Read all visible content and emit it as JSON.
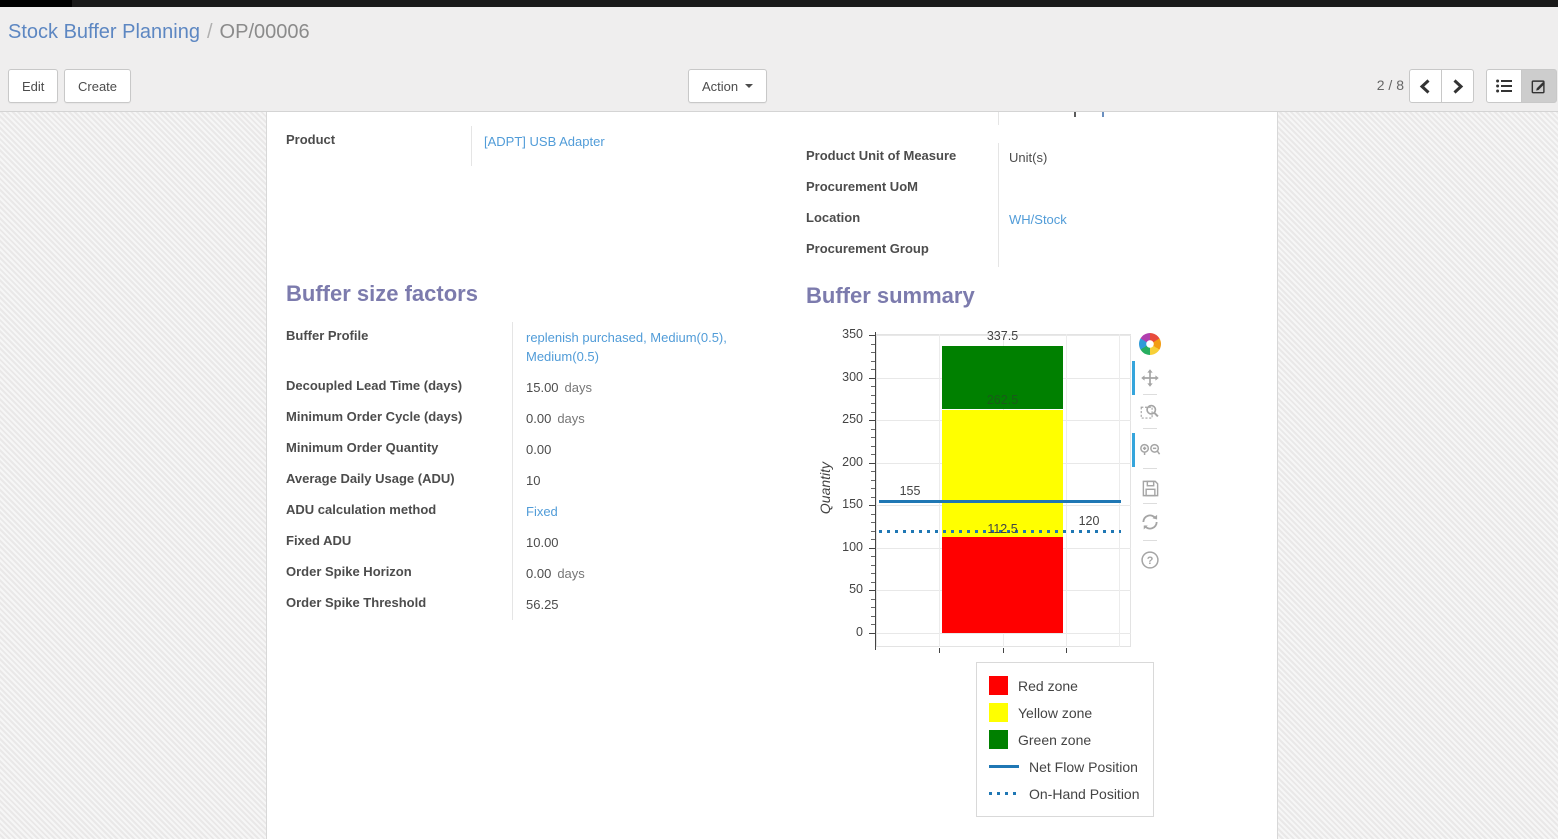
{
  "breadcrumb": {
    "parent": "Stock Buffer Planning",
    "separator": "/",
    "current": "OP/00006"
  },
  "control_panel": {
    "edit_label": "Edit",
    "create_label": "Create",
    "action_label": "Action",
    "pager_value": "2 / 8"
  },
  "form": {
    "general_left": [
      {
        "label": "Product",
        "value": "[ADPT] USB Adapter"
      }
    ],
    "general_right": [
      {
        "label": "Product Unit of Measure",
        "value": "Unit(s)"
      },
      {
        "label": "Procurement UoM",
        "value": ""
      },
      {
        "label": "Location",
        "value": "WH/Stock"
      },
      {
        "label": "Procurement Group",
        "value": ""
      }
    ],
    "buffer_size_factors": {
      "title": "Buffer size factors",
      "rows": [
        {
          "label": "Buffer Profile",
          "value": "replenish purchased, Medium(0.5), Medium(0.5)"
        },
        {
          "label": "Decoupled Lead Time (days)",
          "value": "15.00",
          "suffix": "days"
        },
        {
          "label": "Minimum Order Cycle (days)",
          "value": "0.00",
          "suffix": "days"
        },
        {
          "label": "Minimum Order Quantity",
          "value": "0.00"
        },
        {
          "label": "Average Daily Usage (ADU)",
          "value": "10"
        },
        {
          "label": "ADU calculation method",
          "value": "Fixed"
        },
        {
          "label": "Fixed ADU",
          "value": "10.00"
        },
        {
          "label": "Order Spike Horizon",
          "value": "0.00",
          "suffix": "days"
        },
        {
          "label": "Order Spike Threshold",
          "value": "56.25"
        }
      ]
    },
    "buffer_summary_title": "Buffer summary"
  },
  "chart_data": {
    "type": "bar",
    "stacked": true,
    "categories": [
      ""
    ],
    "series": [
      {
        "name": "Red zone",
        "values": [
          112.5
        ],
        "color": "#ff0000"
      },
      {
        "name": "Yellow zone",
        "values": [
          150.0
        ],
        "color": "#ffff00"
      },
      {
        "name": "Green zone",
        "values": [
          75.0
        ],
        "color": "#008000"
      }
    ],
    "cumulative_tops": {
      "top_of_red": 112.5,
      "top_of_yellow": 262.5,
      "top_of_green": 337.5
    },
    "hlines": [
      {
        "name": "Net Flow Position",
        "y": 155,
        "style": "solid",
        "color": "#1f77b4"
      },
      {
        "name": "On-Hand Position",
        "y": 120,
        "style": "dotted",
        "color": "#1f77b4"
      }
    ],
    "annotations": [
      {
        "text": "337.5",
        "y": 337.5,
        "x": "bar-center",
        "valign": "above"
      },
      {
        "text": "262.5",
        "y": 262.5,
        "x": "bar-center",
        "valign": "above",
        "muted": true
      },
      {
        "text": "155",
        "y": 155,
        "x": "left",
        "valign": "above"
      },
      {
        "text": "120",
        "y": 120,
        "x": "right",
        "valign": "above"
      },
      {
        "text": "112.5",
        "y": 112.5,
        "x": "bar-center",
        "valign": "on-line"
      }
    ],
    "title": "Buffer summary",
    "xlabel": "",
    "ylabel": "Quantity",
    "ylim": [
      0,
      350
    ],
    "ytick_major": 50,
    "ytick_minor": 10,
    "grid": true,
    "legend_position": "bottom-right",
    "legend": [
      {
        "label": "Red zone",
        "swatch": "square",
        "color": "#ff0000"
      },
      {
        "label": "Yellow zone",
        "swatch": "square",
        "color": "#ffff00"
      },
      {
        "label": "Green zone",
        "swatch": "square",
        "color": "#008000"
      },
      {
        "label": "Net Flow Position",
        "swatch": "line-solid",
        "color": "#1f77b4"
      },
      {
        "label": "On-Hand Position",
        "swatch": "line-dotted",
        "color": "#1f77b4"
      }
    ],
    "toolbar_icons": [
      "plotly-logo",
      "pan",
      "box-zoom",
      "zoom-in-out",
      "save",
      "reset-axes",
      "help"
    ]
  }
}
